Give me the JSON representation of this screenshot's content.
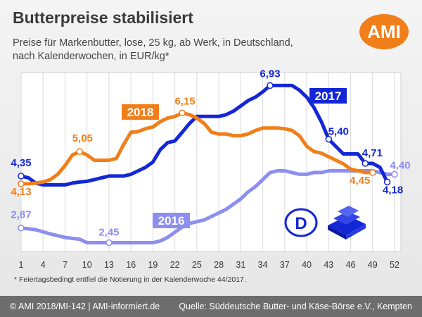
{
  "header": {
    "title": "Butterpreise stabilisiert",
    "subtitle": "Preise für Markenbutter, lose, 25 kg, ab Werk, in Deutschland, nach Kalenderwochen, in EUR/kg*",
    "logo_text": "AMI"
  },
  "footnote": "* Feiertagsbedingt entfiel die Notierung in der Kalenderwoche 44/2017.",
  "footer": {
    "left": "© AMI 2018/MI-142 | AMI-informiert.de",
    "right": "Quelle: Süddeutsche Butter- und Käse-Börse e.V., Kempten"
  },
  "icons": {
    "germany_badge": "D",
    "product_icon": "butter-stack-icon"
  },
  "colors": {
    "s2016": "#8c8ef0",
    "s2017": "#1427d6",
    "s2018": "#f07f1a",
    "logo": "#f07f1a"
  },
  "chart_data": {
    "type": "line",
    "title": "Butterpreise stabilisiert",
    "xlabel": "",
    "ylabel": "",
    "x_ticks": [
      1,
      4,
      7,
      10,
      13,
      16,
      19,
      22,
      25,
      28,
      31,
      34,
      37,
      40,
      43,
      46,
      49,
      52
    ],
    "xlim": [
      1,
      52
    ],
    "ylim": [
      2.2,
      7.3
    ],
    "grid": true,
    "series": [
      {
        "name": "2016",
        "color": "#8c8ef0",
        "x": [
          1,
          3,
          5,
          7,
          9,
          10,
          11,
          12,
          13,
          14,
          15,
          16,
          17,
          18,
          19,
          20,
          21,
          22,
          23,
          24,
          25,
          26,
          27,
          28,
          29,
          30,
          31,
          32,
          33,
          34,
          35,
          36,
          37,
          38,
          39,
          40,
          41,
          42,
          43,
          44,
          45,
          46,
          47,
          48,
          49,
          50,
          51,
          52
        ],
        "values": [
          2.87,
          2.82,
          2.7,
          2.6,
          2.55,
          2.45,
          2.45,
          2.45,
          2.45,
          2.45,
          2.45,
          2.45,
          2.45,
          2.45,
          2.45,
          2.5,
          2.6,
          2.75,
          2.9,
          3.0,
          3.05,
          3.1,
          3.2,
          3.3,
          3.4,
          3.55,
          3.7,
          3.9,
          4.05,
          4.25,
          4.45,
          4.5,
          4.5,
          4.45,
          4.4,
          4.4,
          4.45,
          4.45,
          4.5,
          4.5,
          4.5,
          4.5,
          4.5,
          4.5,
          4.5,
          4.45,
          4.4,
          4.4
        ],
        "labels": [
          {
            "x": 1,
            "y": 2.87,
            "text": "2,87"
          },
          {
            "x": 13,
            "y": 2.45,
            "text": "2,45"
          },
          {
            "x": 52,
            "y": 4.4,
            "text": "4,40"
          }
        ],
        "legend_label": "2016"
      },
      {
        "name": "2017",
        "color": "#1427d6",
        "x": [
          1,
          2,
          3,
          4,
          5,
          6,
          7,
          8,
          9,
          10,
          11,
          12,
          13,
          14,
          15,
          16,
          17,
          18,
          19,
          20,
          21,
          22,
          23,
          24,
          25,
          26,
          27,
          28,
          29,
          30,
          31,
          32,
          33,
          34,
          35,
          36,
          37,
          38,
          39,
          40,
          41,
          42,
          43,
          45,
          46,
          47,
          48,
          49,
          50,
          51
        ],
        "values": [
          4.35,
          4.3,
          4.15,
          4.1,
          4.1,
          4.1,
          4.1,
          4.15,
          4.18,
          4.2,
          4.25,
          4.3,
          4.35,
          4.35,
          4.35,
          4.4,
          4.5,
          4.6,
          4.75,
          5.1,
          5.3,
          5.35,
          5.6,
          5.85,
          6.05,
          6.05,
          6.05,
          6.05,
          6.1,
          6.2,
          6.35,
          6.5,
          6.6,
          6.75,
          6.93,
          6.93,
          6.93,
          6.93,
          6.8,
          6.6,
          6.3,
          5.9,
          5.4,
          4.98,
          4.98,
          4.98,
          4.71,
          4.71,
          4.6,
          4.18
        ],
        "labels": [
          {
            "x": 1,
            "y": 4.35,
            "text": "4,35"
          },
          {
            "x": 35,
            "y": 6.93,
            "text": "6,93"
          },
          {
            "x": 43,
            "y": 5.4,
            "text": "5,40"
          },
          {
            "x": 48,
            "y": 4.71,
            "text": "4,71"
          },
          {
            "x": 51,
            "y": 4.18,
            "text": "4,18"
          }
        ],
        "legend_label": "2017"
      },
      {
        "name": "2018",
        "color": "#f07f1a",
        "x": [
          1,
          2,
          3,
          4,
          5,
          6,
          7,
          8,
          9,
          10,
          11,
          12,
          13,
          14,
          15,
          16,
          17,
          18,
          19,
          20,
          21,
          22,
          23,
          24,
          25,
          26,
          27,
          28,
          29,
          30,
          31,
          32,
          33,
          34,
          35,
          36,
          37,
          38,
          39,
          40,
          41,
          42,
          43,
          44,
          45,
          46,
          47,
          48,
          49
        ],
        "values": [
          4.13,
          4.13,
          4.15,
          4.18,
          4.25,
          4.4,
          4.65,
          4.95,
          5.05,
          4.95,
          4.8,
          4.8,
          4.8,
          4.85,
          5.25,
          5.6,
          5.62,
          5.7,
          5.75,
          5.9,
          6.0,
          6.05,
          6.15,
          6.1,
          6.0,
          5.85,
          5.6,
          5.55,
          5.55,
          5.5,
          5.5,
          5.55,
          5.65,
          5.72,
          5.72,
          5.72,
          5.7,
          5.65,
          5.5,
          5.2,
          5.05,
          5.0,
          4.9,
          4.8,
          4.7,
          4.55,
          4.5,
          4.45,
          4.45
        ],
        "labels": [
          {
            "x": 1,
            "y": 4.13,
            "text": "4,13"
          },
          {
            "x": 9,
            "y": 5.05,
            "text": "5,05"
          },
          {
            "x": 23,
            "y": 6.15,
            "text": "6,15"
          },
          {
            "x": 49,
            "y": 4.45,
            "text": "4,45"
          }
        ],
        "legend_label": "2018"
      }
    ]
  }
}
